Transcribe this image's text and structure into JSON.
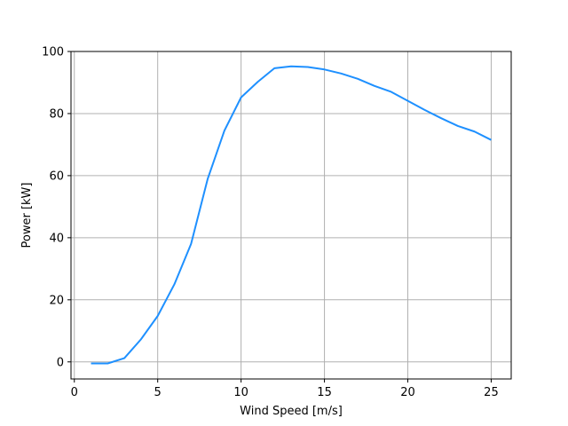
{
  "chart_data": {
    "type": "line",
    "title": "",
    "xlabel": "Wind Speed [m/s]",
    "ylabel": "Power [kW]",
    "xlim": [
      -0.2,
      26.2
    ],
    "ylim": [
      -5.5,
      100
    ],
    "xticks": [
      0,
      5,
      10,
      15,
      20,
      25
    ],
    "yticks": [
      0,
      20,
      40,
      60,
      80,
      100
    ],
    "grid": true,
    "series": [
      {
        "color": "#1e90ff",
        "x": [
          1,
          2,
          3,
          4,
          5,
          6,
          7,
          8,
          9,
          10,
          11,
          12,
          13,
          14,
          15,
          16,
          17,
          18,
          19,
          20,
          21,
          22,
          23,
          24,
          25
        ],
        "y": [
          -0.5,
          -0.5,
          1.2,
          7.3,
          14.8,
          25.0,
          38.0,
          59.0,
          74.5,
          85.2,
          90.2,
          94.6,
          95.2,
          95.0,
          94.2,
          92.9,
          91.2,
          88.9,
          87.0,
          84.1,
          81.2,
          78.5,
          76.0,
          74.2,
          71.5
        ]
      }
    ]
  }
}
